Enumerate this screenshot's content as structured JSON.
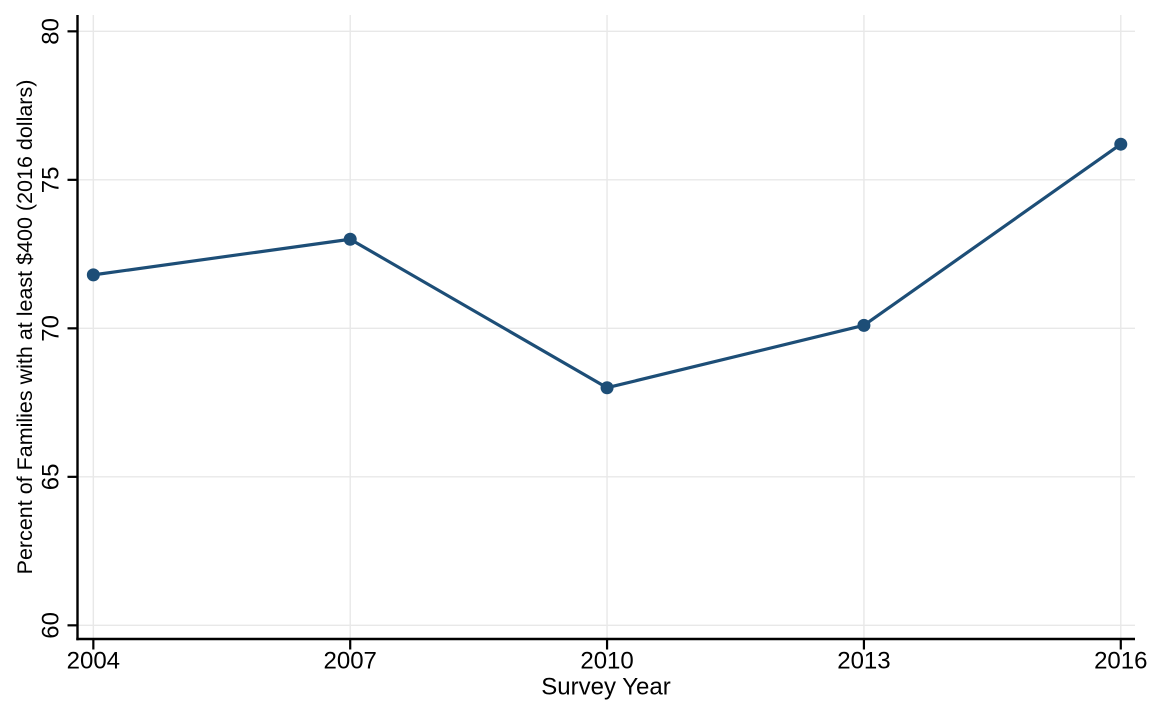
{
  "chart_data": {
    "type": "line",
    "title": "",
    "xlabel": "Survey Year",
    "ylabel": "Percent of Families with at least $400 (2016 dollars)",
    "x": [
      2004,
      2007,
      2010,
      2013,
      2016
    ],
    "x_tick_labels": [
      "2004",
      "2007",
      "2010",
      "2013",
      "2016"
    ],
    "series": [
      {
        "name": "percent-of-families-with-at-least-400",
        "values": [
          71.8,
          73.0,
          68.0,
          70.1,
          76.2
        ]
      }
    ],
    "y_ticks": [
      60,
      65,
      70,
      75,
      80
    ],
    "y_tick_labels": [
      "60",
      "65",
      "70",
      "75",
      "80"
    ],
    "ylim": [
      59.54,
      80.55
    ],
    "xlim": [
      2003.815,
      2016.166
    ],
    "grid": true,
    "legend": "none",
    "marker": "circle",
    "colors": {
      "line": "#1d4e77",
      "marker": "#1d4e77",
      "grid": "#e8e8e8",
      "axis": "#000000",
      "text": "#000000",
      "background": "#ffffff"
    }
  }
}
